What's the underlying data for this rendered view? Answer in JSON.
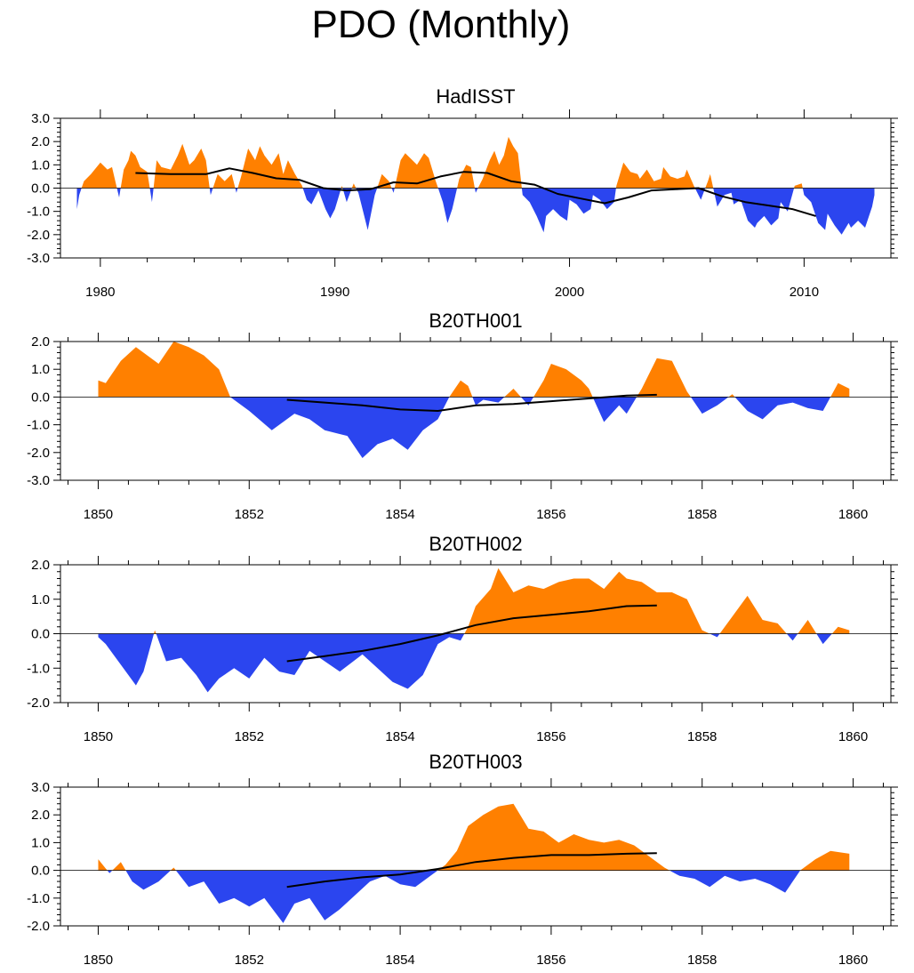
{
  "figure_title": "PDO (Monthly)",
  "colors": {
    "positive": "#ff8000",
    "negative": "#2b45ef",
    "line": "#000000",
    "axis": "#000000"
  },
  "chart_data": [
    {
      "type": "area",
      "title": "HadISST",
      "xlim": [
        1978.3,
        2013.7
      ],
      "ylim": [
        -3.0,
        3.0
      ],
      "x_ticks": [
        1980,
        1990,
        2000,
        2010
      ],
      "x_tick_labels": [
        "1980",
        "1990",
        "2000",
        "2010"
      ],
      "y_ticks": [
        -3,
        -2,
        -1,
        0,
        1,
        2,
        3
      ],
      "y_tick_labels": [
        "-3.0",
        "-2.0",
        "-1.0",
        "0.0",
        "1.0",
        "2.0",
        "3.0"
      ],
      "x": [
        1979.0,
        1979.1,
        1979.3,
        1979.6,
        1980.0,
        1980.3,
        1980.5,
        1980.8,
        1981.0,
        1981.2,
        1981.3,
        1981.5,
        1981.7,
        1982.0,
        1982.2,
        1982.4,
        1982.6,
        1983.0,
        1983.3,
        1983.5,
        1983.8,
        1984.0,
        1984.3,
        1984.5,
        1984.7,
        1985.0,
        1985.3,
        1985.6,
        1985.8,
        1986.0,
        1986.3,
        1986.6,
        1986.8,
        1987.0,
        1987.3,
        1987.6,
        1987.8,
        1988.0,
        1988.3,
        1988.6,
        1988.8,
        1989.0,
        1989.3,
        1989.6,
        1989.8,
        1990.0,
        1990.3,
        1990.5,
        1990.8,
        1991.0,
        1991.2,
        1991.4,
        1991.7,
        1992.0,
        1992.3,
        1992.5,
        1992.8,
        1993.0,
        1993.3,
        1993.5,
        1993.8,
        1994.0,
        1994.3,
        1994.6,
        1994.8,
        1995.0,
        1995.3,
        1995.6,
        1995.8,
        1996.0,
        1996.3,
        1996.6,
        1996.8,
        1997.0,
        1997.2,
        1997.4,
        1997.6,
        1997.8,
        1998.0,
        1998.3,
        1998.6,
        1998.9,
        1999.0,
        1999.3,
        1999.6,
        1999.9,
        2000.0,
        2000.3,
        2000.6,
        2000.9,
        2001.0,
        2001.3,
        2001.6,
        2001.9,
        2002.0,
        2002.3,
        2002.6,
        2002.9,
        2003.0,
        2003.3,
        2003.6,
        2003.9,
        2004.0,
        2004.3,
        2004.6,
        2004.9,
        2005.0,
        2005.3,
        2005.6,
        2005.9,
        2006.0,
        2006.3,
        2006.6,
        2006.9,
        2007.0,
        2007.3,
        2007.6,
        2007.9,
        2008.0,
        2008.3,
        2008.6,
        2008.9,
        2009.0,
        2009.3,
        2009.6,
        2009.9,
        2010.0,
        2010.3,
        2010.6,
        2010.9,
        2011.0,
        2011.3,
        2011.6,
        2011.9,
        2012.0,
        2012.3,
        2012.6,
        2012.9,
        2013.0
      ],
      "values": [
        -0.9,
        -0.3,
        0.3,
        0.6,
        1.1,
        0.8,
        0.9,
        -0.4,
        0.8,
        1.2,
        1.6,
        1.4,
        0.9,
        0.7,
        -0.6,
        1.2,
        0.9,
        0.8,
        1.4,
        1.9,
        1.0,
        1.2,
        1.7,
        1.2,
        -0.3,
        0.6,
        0.3,
        0.6,
        -0.2,
        0.5,
        1.7,
        1.2,
        1.8,
        1.4,
        1.0,
        1.5,
        0.6,
        1.2,
        0.6,
        0.1,
        -0.5,
        -0.7,
        -0.1,
        -0.9,
        -1.3,
        -0.9,
        0.1,
        -0.6,
        0.2,
        -0.2,
        -1.0,
        -1.8,
        -0.3,
        0.6,
        0.3,
        -0.2,
        1.2,
        1.5,
        1.2,
        1.0,
        1.5,
        1.3,
        0.3,
        -0.6,
        -1.5,
        -0.9,
        0.4,
        1.0,
        0.9,
        -0.2,
        0.4,
        1.2,
        1.6,
        1.0,
        1.4,
        2.2,
        1.8,
        1.5,
        -0.3,
        -0.6,
        -1.2,
        -1.9,
        -1.2,
        -0.9,
        -1.2,
        -1.4,
        -0.5,
        -0.7,
        -1.1,
        -0.9,
        -0.3,
        -0.5,
        -0.9,
        -0.6,
        0.1,
        1.1,
        0.7,
        0.6,
        0.4,
        0.8,
        0.3,
        0.4,
        0.9,
        0.5,
        0.4,
        0.5,
        0.8,
        0.1,
        -0.5,
        0.3,
        0.6,
        -0.8,
        -0.3,
        -0.2,
        -0.7,
        -0.5,
        -1.4,
        -1.7,
        -1.5,
        -1.2,
        -1.6,
        -1.3,
        -0.6,
        -1.0,
        0.1,
        0.2,
        -0.3,
        -0.6,
        -1.5,
        -1.8,
        -1.1,
        -1.6,
        -2.0,
        -1.5,
        -1.7,
        -1.4,
        -1.7,
        -0.8,
        -0.3
      ],
      "smooth_x": [
        1981.5,
        1983.0,
        1984.5,
        1985.5,
        1986.5,
        1987.5,
        1988.5,
        1989.5,
        1990.5,
        1991.5,
        1992.5,
        1993.5,
        1994.5,
        1995.5,
        1996.5,
        1997.5,
        1998.5,
        1999.5,
        2000.5,
        2001.5,
        2002.5,
        2003.5,
        2004.5,
        2005.5,
        2006.5,
        2007.5,
        2008.5,
        2009.5,
        2010.5
      ],
      "smooth_values": [
        0.65,
        0.6,
        0.6,
        0.85,
        0.65,
        0.42,
        0.35,
        0.0,
        -0.1,
        -0.05,
        0.25,
        0.2,
        0.5,
        0.7,
        0.65,
        0.3,
        0.15,
        -0.25,
        -0.45,
        -0.65,
        -0.4,
        -0.1,
        -0.05,
        0.0,
        -0.35,
        -0.6,
        -0.75,
        -0.9,
        -1.2
      ]
    },
    {
      "type": "area",
      "title": "B20TH001",
      "xlim": [
        1849.5,
        1860.5
      ],
      "ylim": [
        -3.0,
        2.0
      ],
      "x_ticks": [
        1850,
        1852,
        1854,
        1856,
        1858,
        1860
      ],
      "x_tick_labels": [
        "1850",
        "1852",
        "1854",
        "1856",
        "1858",
        "1860"
      ],
      "y_ticks": [
        -3,
        -2,
        -1,
        0,
        1,
        2
      ],
      "y_tick_labels": [
        "-3.0",
        "-2.0",
        "-1.0",
        "0.0",
        "1.0",
        "2.0"
      ],
      "x": [
        1850.0,
        1850.1,
        1850.3,
        1850.5,
        1850.6,
        1850.8,
        1851.0,
        1851.2,
        1851.4,
        1851.6,
        1851.75,
        1852.0,
        1852.3,
        1852.6,
        1852.8,
        1853.0,
        1853.3,
        1853.5,
        1853.7,
        1853.9,
        1854.1,
        1854.3,
        1854.5,
        1854.65,
        1854.8,
        1854.9,
        1855.0,
        1855.1,
        1855.3,
        1855.5,
        1855.7,
        1855.9,
        1856.0,
        1856.2,
        1856.4,
        1856.5,
        1856.7,
        1856.9,
        1857.0,
        1857.2,
        1857.4,
        1857.6,
        1857.8,
        1858.0,
        1858.2,
        1858.4,
        1858.6,
        1858.8,
        1859.0,
        1859.2,
        1859.4,
        1859.6,
        1859.8,
        1859.95
      ],
      "values": [
        0.6,
        0.5,
        1.3,
        1.8,
        1.6,
        1.2,
        2.0,
        1.8,
        1.5,
        1.0,
        0.0,
        -0.5,
        -1.2,
        -0.6,
        -0.8,
        -1.2,
        -1.4,
        -2.2,
        -1.7,
        -1.5,
        -1.9,
        -1.2,
        -0.8,
        0.0,
        0.6,
        0.4,
        -0.3,
        -0.1,
        -0.2,
        0.3,
        -0.3,
        0.6,
        1.2,
        1.0,
        0.6,
        0.3,
        -0.9,
        -0.3,
        -0.6,
        0.3,
        1.4,
        1.3,
        0.2,
        -0.6,
        -0.3,
        0.1,
        -0.5,
        -0.8,
        -0.3,
        -0.2,
        -0.4,
        -0.5,
        0.5,
        0.3
      ],
      "smooth_x": [
        1852.5,
        1853.0,
        1853.5,
        1854.0,
        1854.5,
        1855.0,
        1855.5,
        1856.0,
        1856.5,
        1857.0,
        1857.4
      ],
      "smooth_values": [
        -0.1,
        -0.2,
        -0.3,
        -0.45,
        -0.5,
        -0.3,
        -0.25,
        -0.15,
        -0.05,
        0.05,
        0.08
      ]
    },
    {
      "type": "area",
      "title": "B20TH002",
      "xlim": [
        1849.5,
        1860.5
      ],
      "ylim": [
        -2.0,
        2.0
      ],
      "x_ticks": [
        1850,
        1852,
        1854,
        1856,
        1858,
        1860
      ],
      "x_tick_labels": [
        "1850",
        "1852",
        "1854",
        "1856",
        "1858",
        "1860"
      ],
      "y_ticks": [
        -2,
        -1,
        0,
        1,
        2
      ],
      "y_tick_labels": [
        "-2.0",
        "-1.0",
        "0.0",
        "1.0",
        "2.0"
      ],
      "x": [
        1850.0,
        1850.1,
        1850.3,
        1850.5,
        1850.6,
        1850.75,
        1850.9,
        1851.1,
        1851.3,
        1851.45,
        1851.6,
        1851.8,
        1852.0,
        1852.2,
        1852.4,
        1852.6,
        1852.8,
        1853.0,
        1853.2,
        1853.5,
        1853.7,
        1853.9,
        1854.1,
        1854.3,
        1854.5,
        1854.65,
        1854.8,
        1854.9,
        1855.0,
        1855.2,
        1855.3,
        1855.5,
        1855.7,
        1855.9,
        1856.1,
        1856.3,
        1856.5,
        1856.7,
        1856.9,
        1857.0,
        1857.2,
        1857.4,
        1857.6,
        1857.8,
        1858.0,
        1858.2,
        1858.4,
        1858.6,
        1858.8,
        1859.0,
        1859.2,
        1859.4,
        1859.6,
        1859.8,
        1859.95
      ],
      "values": [
        -0.1,
        -0.3,
        -0.9,
        -1.5,
        -1.1,
        0.1,
        -0.8,
        -0.7,
        -1.2,
        -1.7,
        -1.3,
        -1.0,
        -1.3,
        -0.7,
        -1.1,
        -1.2,
        -0.5,
        -0.8,
        -1.1,
        -0.6,
        -1.0,
        -1.4,
        -1.6,
        -1.2,
        -0.3,
        -0.1,
        -0.2,
        0.2,
        0.8,
        1.3,
        1.9,
        1.2,
        1.4,
        1.3,
        1.5,
        1.6,
        1.6,
        1.3,
        1.8,
        1.6,
        1.5,
        1.2,
        1.2,
        1.0,
        0.1,
        -0.1,
        0.5,
        1.1,
        0.4,
        0.3,
        -0.2,
        0.4,
        -0.3,
        0.2,
        0.1
      ],
      "smooth_x": [
        1852.5,
        1853.0,
        1853.5,
        1854.0,
        1854.5,
        1855.0,
        1855.5,
        1856.0,
        1856.5,
        1857.0,
        1857.4
      ],
      "smooth_values": [
        -0.8,
        -0.65,
        -0.5,
        -0.3,
        -0.05,
        0.25,
        0.45,
        0.55,
        0.65,
        0.8,
        0.82
      ]
    },
    {
      "type": "area",
      "title": "B20TH003",
      "xlim": [
        1849.5,
        1860.5
      ],
      "ylim": [
        -2.0,
        3.0
      ],
      "x_ticks": [
        1850,
        1852,
        1854,
        1856,
        1858,
        1860
      ],
      "x_tick_labels": [
        "1850",
        "1852",
        "1854",
        "1856",
        "1858",
        "1860"
      ],
      "y_ticks": [
        -2,
        -1,
        0,
        1,
        2,
        3
      ],
      "y_tick_labels": [
        "-2.0",
        "-1.0",
        "0.0",
        "1.0",
        "2.0",
        "3.0"
      ],
      "x": [
        1850.0,
        1850.15,
        1850.3,
        1850.45,
        1850.6,
        1850.8,
        1851.0,
        1851.2,
        1851.4,
        1851.6,
        1851.8,
        1852.0,
        1852.2,
        1852.45,
        1852.6,
        1852.8,
        1853.0,
        1853.2,
        1853.4,
        1853.6,
        1853.8,
        1854.0,
        1854.2,
        1854.4,
        1854.6,
        1854.75,
        1854.9,
        1855.1,
        1855.3,
        1855.5,
        1855.7,
        1855.9,
        1856.1,
        1856.3,
        1856.5,
        1856.7,
        1856.9,
        1857.1,
        1857.3,
        1857.5,
        1857.7,
        1857.9,
        1858.1,
        1858.3,
        1858.5,
        1858.7,
        1858.9,
        1859.1,
        1859.3,
        1859.5,
        1859.7,
        1859.95
      ],
      "values": [
        0.4,
        -0.1,
        0.3,
        -0.4,
        -0.7,
        -0.4,
        0.1,
        -0.6,
        -0.4,
        -1.2,
        -1.0,
        -1.3,
        -1.0,
        -1.9,
        -1.2,
        -1.0,
        -1.8,
        -1.4,
        -0.9,
        -0.4,
        -0.2,
        -0.5,
        -0.6,
        -0.2,
        0.2,
        0.7,
        1.6,
        2.0,
        2.3,
        2.4,
        1.5,
        1.4,
        1.0,
        1.3,
        1.1,
        1.0,
        1.1,
        0.9,
        0.5,
        0.1,
        -0.2,
        -0.3,
        -0.6,
        -0.2,
        -0.4,
        -0.3,
        -0.5,
        -0.8,
        0.0,
        0.4,
        0.7,
        0.6
      ],
      "smooth_x": [
        1852.5,
        1853.0,
        1853.5,
        1854.0,
        1854.5,
        1855.0,
        1855.5,
        1856.0,
        1856.5,
        1857.0,
        1857.4
      ],
      "smooth_values": [
        -0.6,
        -0.4,
        -0.25,
        -0.15,
        0.05,
        0.3,
        0.45,
        0.55,
        0.55,
        0.6,
        0.62
      ]
    }
  ]
}
